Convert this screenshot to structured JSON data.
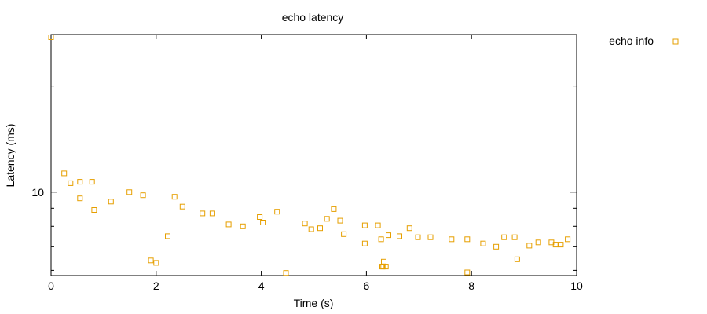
{
  "chart_data": {
    "type": "scatter",
    "title": "echo latency",
    "xlabel": "Time (s)",
    "ylabel": "Latency (ms)",
    "xlim": [
      0,
      10
    ],
    "ylim": [
      5.8,
      28
    ],
    "y_scale": "log",
    "x_ticks": [
      0,
      2,
      4,
      6,
      8,
      10
    ],
    "y_tick_labels": [
      10
    ],
    "y_minor_ticks": [
      6,
      7,
      8,
      9,
      20
    ],
    "grid": false,
    "legend_position": "top-right outside plot",
    "marker": "open-square",
    "series": [
      {
        "name": "echo info",
        "color": "#E69F00",
        "points": [
          [
            0.0,
            27.5
          ],
          [
            0.25,
            11.3
          ],
          [
            0.37,
            10.6
          ],
          [
            0.55,
            10.7
          ],
          [
            0.55,
            9.6
          ],
          [
            0.78,
            10.7
          ],
          [
            0.82,
            8.9
          ],
          [
            1.14,
            9.4
          ],
          [
            1.49,
            10.0
          ],
          [
            1.75,
            9.8
          ],
          [
            1.9,
            6.4
          ],
          [
            2.0,
            6.3
          ],
          [
            2.22,
            7.5
          ],
          [
            2.35,
            9.7
          ],
          [
            2.5,
            9.1
          ],
          [
            2.88,
            8.7
          ],
          [
            3.07,
            8.7
          ],
          [
            3.38,
            8.1
          ],
          [
            3.65,
            8.0
          ],
          [
            3.97,
            8.5
          ],
          [
            4.03,
            8.2
          ],
          [
            4.3,
            8.8
          ],
          [
            4.47,
            5.9
          ],
          [
            4.83,
            8.15
          ],
          [
            4.95,
            7.85
          ],
          [
            5.12,
            7.9
          ],
          [
            5.25,
            8.4
          ],
          [
            5.38,
            8.95
          ],
          [
            5.5,
            8.3
          ],
          [
            5.57,
            7.6
          ],
          [
            5.97,
            8.05
          ],
          [
            5.97,
            7.15
          ],
          [
            6.22,
            8.05
          ],
          [
            6.28,
            7.35
          ],
          [
            6.3,
            6.15
          ],
          [
            6.32,
            6.15
          ],
          [
            6.37,
            6.15
          ],
          [
            6.33,
            6.35
          ],
          [
            6.42,
            7.55
          ],
          [
            6.63,
            7.5
          ],
          [
            6.82,
            7.9
          ],
          [
            6.98,
            7.45
          ],
          [
            7.22,
            7.45
          ],
          [
            7.62,
            7.35
          ],
          [
            7.92,
            7.35
          ],
          [
            7.92,
            5.92
          ],
          [
            8.22,
            7.15
          ],
          [
            8.47,
            7.0
          ],
          [
            8.62,
            7.45
          ],
          [
            8.82,
            7.45
          ],
          [
            8.87,
            6.45
          ],
          [
            9.1,
            7.05
          ],
          [
            9.27,
            7.2
          ],
          [
            9.52,
            7.2
          ],
          [
            9.6,
            7.1
          ],
          [
            9.7,
            7.1
          ],
          [
            9.83,
            7.35
          ]
        ]
      }
    ]
  }
}
